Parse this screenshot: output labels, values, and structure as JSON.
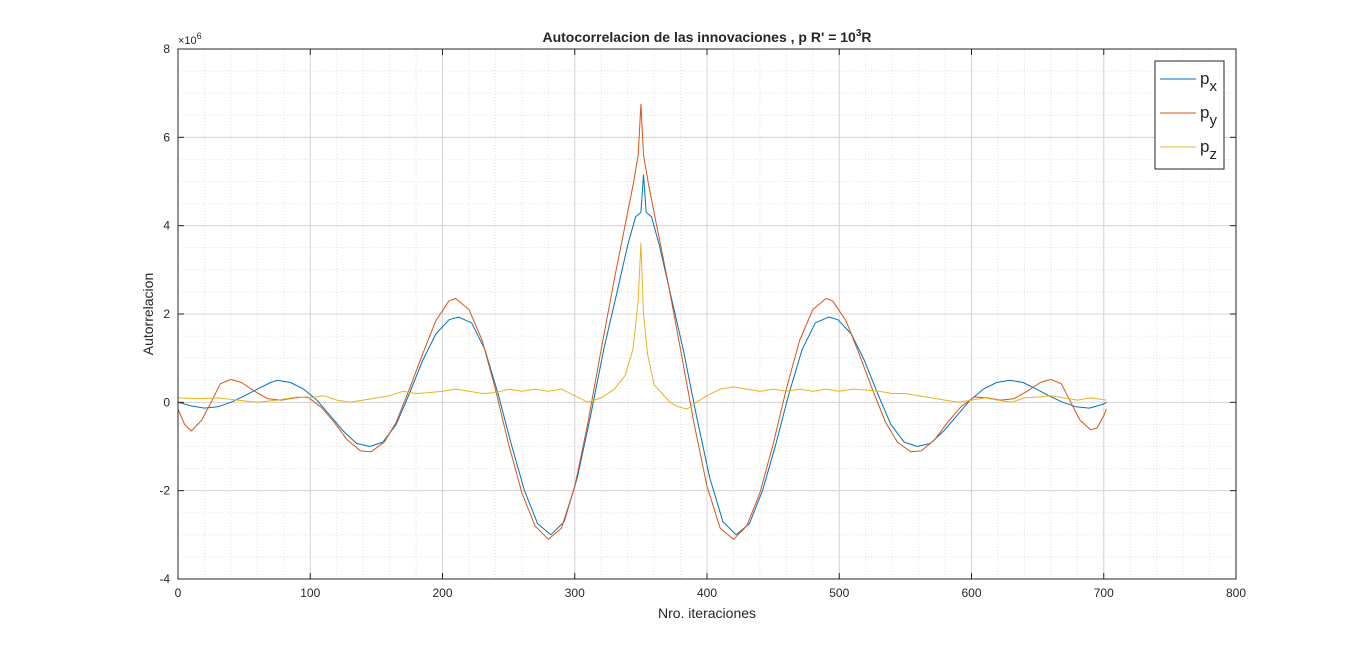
{
  "chart_data": {
    "type": "line",
    "title_main": "Autocorrelacion de las innovaciones , p R' = 10",
    "title_sup": "3",
    "title_end": "R",
    "xlabel": "Nro. iteraciones",
    "ylabel": "Autorrelacion",
    "y_exponent_base": "×10",
    "y_exponent_power": "6",
    "xlim": [
      0,
      800
    ],
    "ylim": [
      -4,
      8
    ],
    "xticks": [
      0,
      100,
      200,
      300,
      400,
      500,
      600,
      700,
      800
    ],
    "yticks": [
      -4,
      -2,
      0,
      2,
      4,
      6,
      8
    ],
    "grid": true,
    "minor_grid": true,
    "legend_position": "top-right",
    "series": [
      {
        "name": "p",
        "subscript": "x",
        "color": "#0072BD",
        "points": [
          [
            0,
            0.0
          ],
          [
            10,
            -0.08
          ],
          [
            20,
            -0.13
          ],
          [
            30,
            -0.1
          ],
          [
            40,
            0.0
          ],
          [
            50,
            0.14
          ],
          [
            60,
            0.3
          ],
          [
            70,
            0.45
          ],
          [
            75,
            0.5
          ],
          [
            85,
            0.45
          ],
          [
            95,
            0.3
          ],
          [
            105,
            0.05
          ],
          [
            115,
            -0.3
          ],
          [
            125,
            -0.65
          ],
          [
            135,
            -0.93
          ],
          [
            145,
            -1.0
          ],
          [
            155,
            -0.9
          ],
          [
            165,
            -0.5
          ],
          [
            175,
            0.2
          ],
          [
            185,
            0.95
          ],
          [
            195,
            1.55
          ],
          [
            205,
            1.87
          ],
          [
            212,
            1.93
          ],
          [
            222,
            1.8
          ],
          [
            232,
            1.2
          ],
          [
            242,
            0.2
          ],
          [
            252,
            -0.95
          ],
          [
            262,
            -2.0
          ],
          [
            272,
            -2.75
          ],
          [
            282,
            -3.0
          ],
          [
            292,
            -2.7
          ],
          [
            302,
            -1.7
          ],
          [
            312,
            -0.3
          ],
          [
            322,
            1.2
          ],
          [
            332,
            2.5
          ],
          [
            340,
            3.55
          ],
          [
            346,
            4.2
          ],
          [
            350,
            4.3
          ],
          [
            352,
            5.15
          ],
          [
            354,
            4.3
          ],
          [
            358,
            4.2
          ],
          [
            364,
            3.55
          ],
          [
            372,
            2.5
          ],
          [
            382,
            1.2
          ],
          [
            392,
            -0.3
          ],
          [
            402,
            -1.7
          ],
          [
            412,
            -2.7
          ],
          [
            422,
            -3.0
          ],
          [
            432,
            -2.75
          ],
          [
            442,
            -2.0
          ],
          [
            452,
            -0.95
          ],
          [
            462,
            0.2
          ],
          [
            472,
            1.2
          ],
          [
            482,
            1.8
          ],
          [
            492,
            1.93
          ],
          [
            499,
            1.87
          ],
          [
            509,
            1.55
          ],
          [
            519,
            0.95
          ],
          [
            529,
            0.2
          ],
          [
            539,
            -0.5
          ],
          [
            549,
            -0.9
          ],
          [
            559,
            -1.0
          ],
          [
            569,
            -0.93
          ],
          [
            579,
            -0.65
          ],
          [
            589,
            -0.3
          ],
          [
            599,
            0.05
          ],
          [
            609,
            0.3
          ],
          [
            619,
            0.45
          ],
          [
            629,
            0.5
          ],
          [
            639,
            0.45
          ],
          [
            649,
            0.3
          ],
          [
            659,
            0.14
          ],
          [
            669,
            0.0
          ],
          [
            679,
            -0.1
          ],
          [
            689,
            -0.13
          ],
          [
            699,
            -0.05
          ],
          [
            702,
            0.0
          ]
        ]
      },
      {
        "name": "p",
        "subscript": "y",
        "color": "#D95319",
        "points": [
          [
            0,
            -0.15
          ],
          [
            5,
            -0.5
          ],
          [
            10,
            -0.65
          ],
          [
            18,
            -0.4
          ],
          [
            25,
            0.0
          ],
          [
            32,
            0.42
          ],
          [
            40,
            0.52
          ],
          [
            48,
            0.45
          ],
          [
            58,
            0.25
          ],
          [
            68,
            0.08
          ],
          [
            78,
            0.05
          ],
          [
            88,
            0.1
          ],
          [
            98,
            0.12
          ],
          [
            108,
            -0.1
          ],
          [
            118,
            -0.45
          ],
          [
            128,
            -0.85
          ],
          [
            138,
            -1.1
          ],
          [
            146,
            -1.12
          ],
          [
            156,
            -0.9
          ],
          [
            165,
            -0.45
          ],
          [
            175,
            0.3
          ],
          [
            185,
            1.1
          ],
          [
            195,
            1.85
          ],
          [
            205,
            2.3
          ],
          [
            210,
            2.35
          ],
          [
            220,
            2.1
          ],
          [
            230,
            1.4
          ],
          [
            240,
            0.3
          ],
          [
            250,
            -0.95
          ],
          [
            260,
            -2.05
          ],
          [
            270,
            -2.8
          ],
          [
            280,
            -3.1
          ],
          [
            290,
            -2.85
          ],
          [
            300,
            -1.9
          ],
          [
            310,
            -0.45
          ],
          [
            320,
            1.2
          ],
          [
            330,
            2.8
          ],
          [
            338,
            4.0
          ],
          [
            344,
            4.9
          ],
          [
            348,
            5.6
          ],
          [
            350,
            6.75
          ],
          [
            352,
            5.6
          ],
          [
            356,
            4.9
          ],
          [
            362,
            4.0
          ],
          [
            370,
            2.8
          ],
          [
            380,
            1.2
          ],
          [
            390,
            -0.45
          ],
          [
            400,
            -1.9
          ],
          [
            410,
            -2.85
          ],
          [
            420,
            -3.1
          ],
          [
            430,
            -2.8
          ],
          [
            440,
            -2.05
          ],
          [
            450,
            -0.95
          ],
          [
            460,
            0.3
          ],
          [
            470,
            1.4
          ],
          [
            480,
            2.1
          ],
          [
            490,
            2.35
          ],
          [
            495,
            2.3
          ],
          [
            505,
            1.85
          ],
          [
            515,
            1.1
          ],
          [
            525,
            0.3
          ],
          [
            535,
            -0.45
          ],
          [
            544,
            -0.9
          ],
          [
            554,
            -1.12
          ],
          [
            562,
            -1.1
          ],
          [
            572,
            -0.85
          ],
          [
            582,
            -0.45
          ],
          [
            592,
            -0.1
          ],
          [
            602,
            0.12
          ],
          [
            612,
            0.1
          ],
          [
            622,
            0.05
          ],
          [
            632,
            0.08
          ],
          [
            642,
            0.25
          ],
          [
            652,
            0.45
          ],
          [
            660,
            0.52
          ],
          [
            668,
            0.42
          ],
          [
            675,
            0.0
          ],
          [
            682,
            -0.4
          ],
          [
            690,
            -0.62
          ],
          [
            695,
            -0.58
          ],
          [
            700,
            -0.3
          ],
          [
            702,
            -0.15
          ]
        ]
      },
      {
        "name": "p",
        "subscript": "z",
        "color": "#EDB120",
        "points": [
          [
            0,
            0.1
          ],
          [
            15,
            0.08
          ],
          [
            30,
            0.1
          ],
          [
            45,
            0.05
          ],
          [
            60,
            0.0
          ],
          [
            75,
            0.05
          ],
          [
            90,
            0.12
          ],
          [
            100,
            0.1
          ],
          [
            110,
            0.15
          ],
          [
            120,
            0.05
          ],
          [
            130,
            0.0
          ],
          [
            140,
            0.05
          ],
          [
            150,
            0.1
          ],
          [
            160,
            0.15
          ],
          [
            170,
            0.25
          ],
          [
            180,
            0.2
          ],
          [
            190,
            0.22
          ],
          [
            200,
            0.25
          ],
          [
            210,
            0.3
          ],
          [
            220,
            0.25
          ],
          [
            230,
            0.2
          ],
          [
            240,
            0.22
          ],
          [
            250,
            0.3
          ],
          [
            260,
            0.25
          ],
          [
            270,
            0.3
          ],
          [
            280,
            0.25
          ],
          [
            290,
            0.3
          ],
          [
            300,
            0.15
          ],
          [
            310,
            0.0
          ],
          [
            320,
            0.1
          ],
          [
            330,
            0.3
          ],
          [
            338,
            0.6
          ],
          [
            344,
            1.2
          ],
          [
            348,
            2.3
          ],
          [
            350,
            3.6
          ],
          [
            352,
            2.0
          ],
          [
            355,
            1.1
          ],
          [
            360,
            0.4
          ],
          [
            366,
            0.2
          ],
          [
            372,
            0.0
          ],
          [
            378,
            -0.1
          ],
          [
            385,
            -0.15
          ],
          [
            392,
            0.0
          ],
          [
            400,
            0.15
          ],
          [
            410,
            0.3
          ],
          [
            420,
            0.35
          ],
          [
            430,
            0.3
          ],
          [
            440,
            0.25
          ],
          [
            450,
            0.3
          ],
          [
            460,
            0.25
          ],
          [
            470,
            0.3
          ],
          [
            480,
            0.25
          ],
          [
            490,
            0.3
          ],
          [
            500,
            0.25
          ],
          [
            510,
            0.3
          ],
          [
            520,
            0.28
          ],
          [
            530,
            0.25
          ],
          [
            540,
            0.2
          ],
          [
            550,
            0.2
          ],
          [
            560,
            0.15
          ],
          [
            570,
            0.1
          ],
          [
            580,
            0.05
          ],
          [
            590,
            0.0
          ],
          [
            600,
            0.05
          ],
          [
            610,
            0.1
          ],
          [
            620,
            0.05
          ],
          [
            630,
            0.0
          ],
          [
            640,
            0.1
          ],
          [
            650,
            0.12
          ],
          [
            660,
            0.15
          ],
          [
            670,
            0.1
          ],
          [
            680,
            0.05
          ],
          [
            690,
            0.1
          ],
          [
            702,
            0.05
          ]
        ]
      }
    ]
  }
}
